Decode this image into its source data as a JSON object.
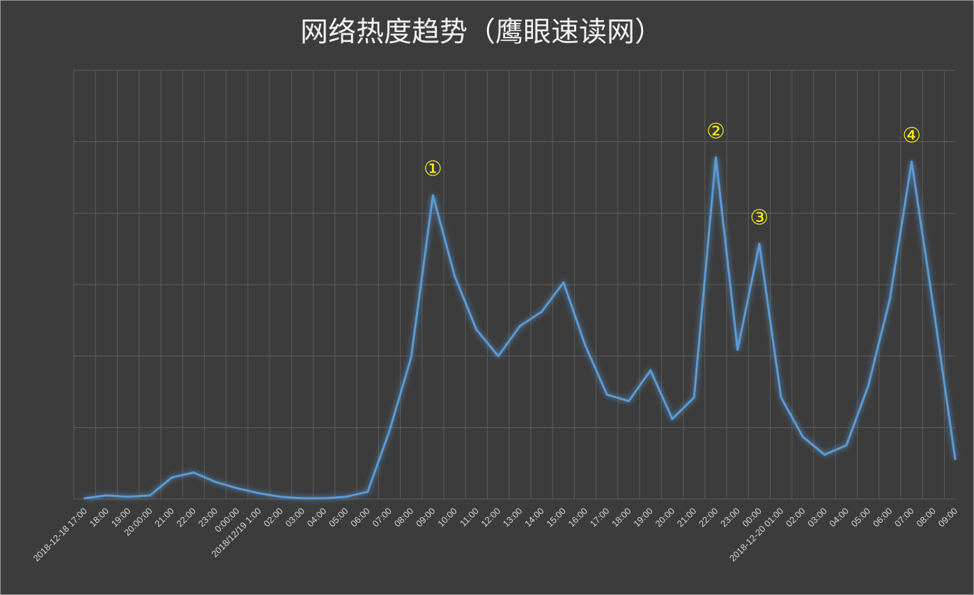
{
  "chart_data": {
    "type": "line",
    "title": "网络热度趋势（鹰眼速读网）",
    "xlabel": "",
    "ylabel": "",
    "grid": true,
    "y_tick_labels_shown": false,
    "ylim": [
      0,
      600
    ],
    "line_color": "#5b9bd5",
    "annotation_color": "#f5f01a",
    "categories": [
      "2018-12-18 17:00",
      "18:00",
      "19:00",
      "20:00:00",
      "21:00",
      "22:00",
      "23:00",
      "0:00:00",
      "2018/12/19 1:00",
      "02:00",
      "03:00",
      "04:00",
      "05:00",
      "06:00",
      "07:00",
      "08:00",
      "09:00",
      "10:00",
      "11:00",
      "12:00",
      "13:00",
      "14:00",
      "15:00",
      "16:00",
      "17:00",
      "18:00",
      "19:00",
      "20:00",
      "21:00",
      "22:00",
      "23:00",
      "00:00",
      "2018-12-20 01:00",
      "02:00",
      "03:00",
      "04:00",
      "05:00",
      "06:00",
      "07:00",
      "08:00",
      "09:00"
    ],
    "series": [
      {
        "values": [
          1,
          5,
          3,
          5,
          30,
          37,
          24,
          15,
          8,
          3,
          1,
          1,
          3,
          10,
          95,
          198,
          425,
          312,
          237,
          200,
          242,
          262,
          303,
          215,
          146,
          137,
          180,
          112,
          142,
          478,
          209,
          357,
          142,
          87,
          62,
          75,
          158,
          280,
          472,
          268,
          56
        ]
      }
    ],
    "annotations": [
      {
        "label": "①",
        "index": 16
      },
      {
        "label": "②",
        "index": 29
      },
      {
        "label": "③",
        "index": 31
      },
      {
        "label": "④",
        "index": 38
      }
    ]
  }
}
